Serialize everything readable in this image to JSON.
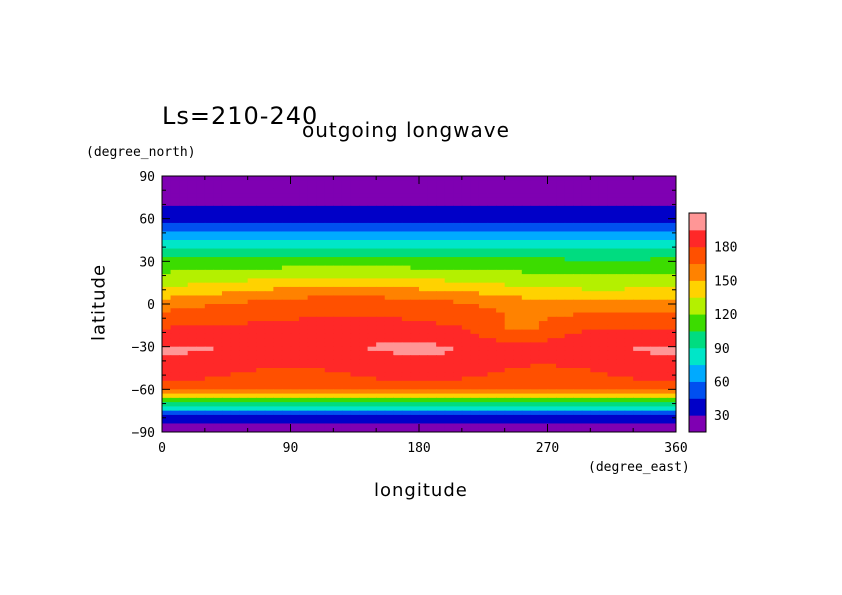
{
  "colors": {
    "levels": [
      "#7f00b2",
      "#0000c8",
      "#0050f0",
      "#00aaff",
      "#00e6c8",
      "#00dc80",
      "#3cdc00",
      "#b4f000",
      "#ffd200",
      "#ff8200",
      "#ff5000",
      "#ff2828",
      "#ff9696"
    ],
    "level_bounds": [
      15,
      30,
      45,
      60,
      75,
      90,
      105,
      120,
      135,
      150,
      165,
      180,
      195
    ]
  },
  "chart_data": {
    "type": "heatmap",
    "title": "Ls=210-240",
    "subtitle": "outgoing longwave",
    "xlabel": "longitude",
    "ylabel": "latitude",
    "xunit": "(degree_east)",
    "yunit": "(degree_north)",
    "xlim": [
      0,
      360
    ],
    "ylim": [
      -90,
      90
    ],
    "xticks": [
      "0",
      "90",
      "180",
      "270",
      "360"
    ],
    "yticks": [
      "90",
      "60",
      "30",
      "0",
      "-30",
      "-60",
      "-90"
    ],
    "colorbar_ticks": [
      "180",
      "150",
      "120",
      "90",
      "60",
      "30"
    ],
    "zonal_mean_profile": [
      {
        "lat": 85,
        "value": 22
      },
      {
        "lat": 60,
        "value": 35
      },
      {
        "lat": 45,
        "value": 75
      },
      {
        "lat": 30,
        "value": 110
      },
      {
        "lat": 15,
        "value": 135
      },
      {
        "lat": 0,
        "value": 165
      },
      {
        "lat": -15,
        "value": 180
      },
      {
        "lat": -30,
        "value": 195
      },
      {
        "lat": -45,
        "value": 185
      },
      {
        "lat": -60,
        "value": 170
      },
      {
        "lat": -70,
        "value": 100
      },
      {
        "lat": -80,
        "value": 35
      },
      {
        "lat": -88,
        "value": 20
      }
    ]
  }
}
